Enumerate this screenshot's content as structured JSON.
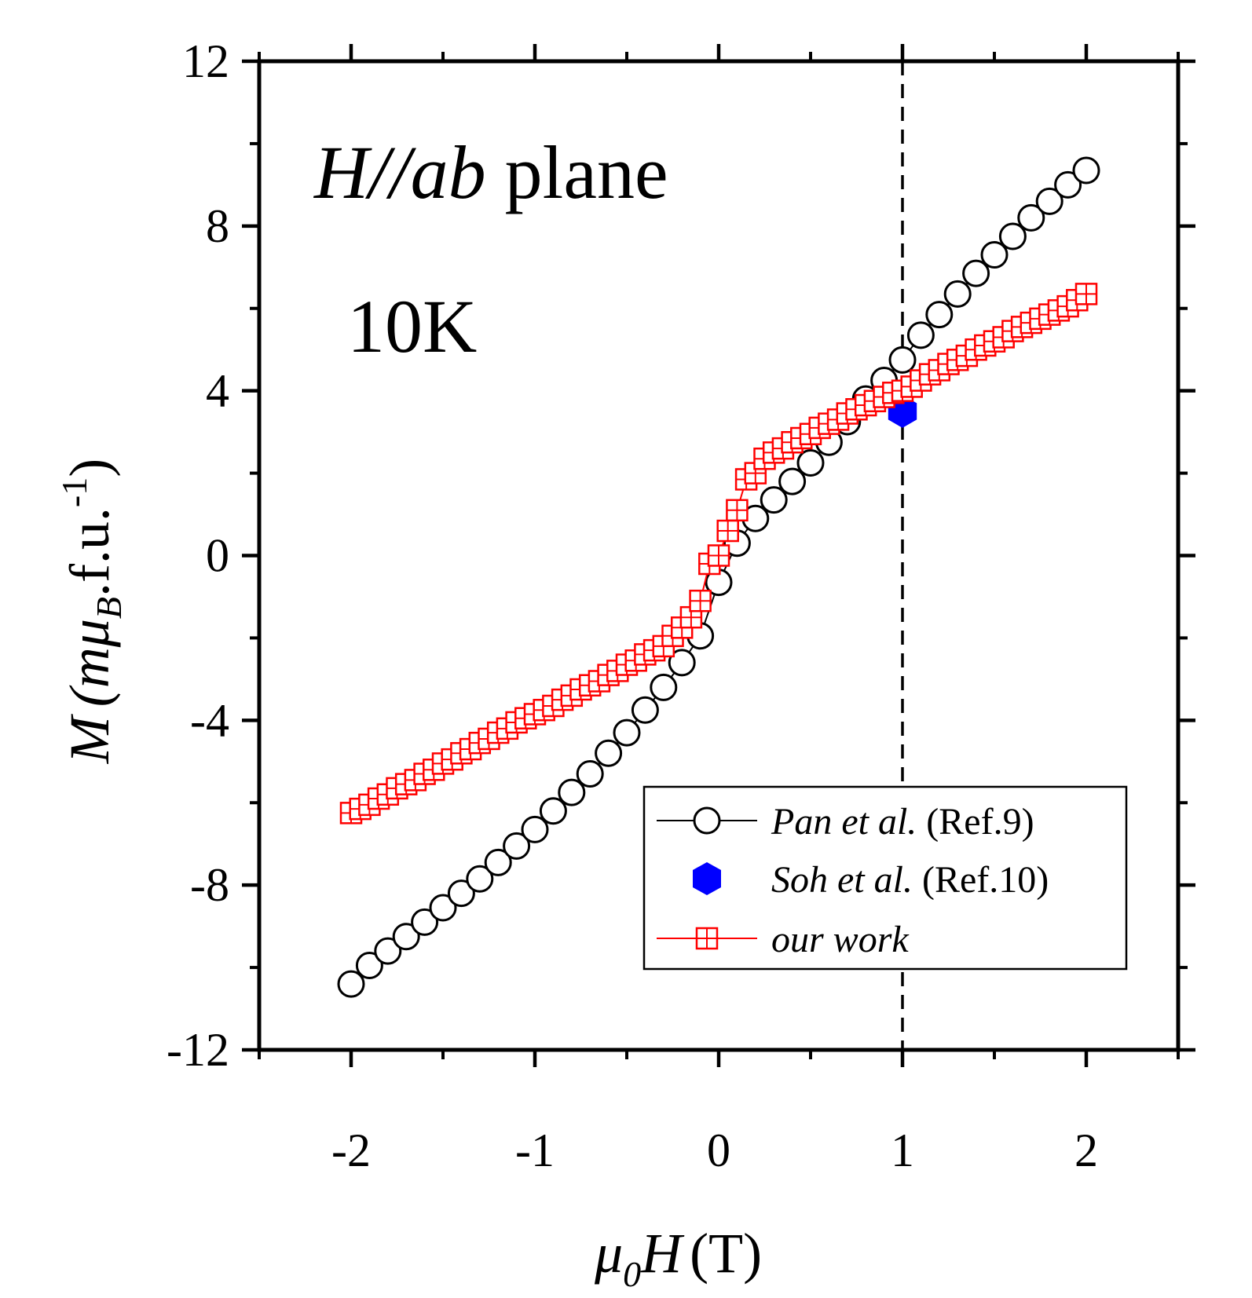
{
  "chart_data": {
    "type": "scatter",
    "title": "",
    "annotations": {
      "field_direction_italic": "H//ab",
      "field_direction_rest": "plane",
      "temperature": "10K"
    },
    "xlabel": {
      "symbol": "μ",
      "subscript": "0",
      "variable": "H",
      "unit": "(T)"
    },
    "ylabel": {
      "variable": "M",
      "open": "(m",
      "mu": "μ",
      "sub": "B",
      "mid": ".f.u.",
      "sup": "-1",
      "close": ")"
    },
    "xlim": [
      -2.5,
      2.5
    ],
    "ylim": [
      -12,
      12
    ],
    "xticks": [
      -2,
      -1,
      0,
      1,
      2
    ],
    "xtick_labels": [
      "-2",
      "-1",
      "0",
      "1",
      "2"
    ],
    "yticks": [
      -12,
      -8,
      -4,
      0,
      4,
      8,
      12
    ],
    "ytick_labels": [
      "-12",
      "-8",
      "-4",
      "0",
      "4",
      "8",
      "12"
    ],
    "reference_line": {
      "x": 1,
      "style": "dashed",
      "color": "#000000"
    },
    "legend_position": "bottom-right",
    "series": [
      {
        "name": "Pan et al.",
        "name_ref": "(Ref.9)",
        "color": "#000000",
        "marker": "open-circle",
        "line": true,
        "x": [
          -2.0,
          -1.9,
          -1.8,
          -1.7,
          -1.6,
          -1.5,
          -1.4,
          -1.3,
          -1.2,
          -1.1,
          -1.0,
          -0.9,
          -0.8,
          -0.7,
          -0.6,
          -0.5,
          -0.4,
          -0.3,
          -0.2,
          -0.1,
          0.0,
          0.1,
          0.2,
          0.3,
          0.4,
          0.5,
          0.6,
          0.7,
          0.8,
          0.9,
          1.0,
          1.1,
          1.2,
          1.3,
          1.4,
          1.5,
          1.6,
          1.7,
          1.8,
          1.9,
          2.0
        ],
        "y": [
          -10.4,
          -9.95,
          -9.6,
          -9.25,
          -8.9,
          -8.55,
          -8.2,
          -7.85,
          -7.45,
          -7.05,
          -6.65,
          -6.2,
          -5.75,
          -5.3,
          -4.8,
          -4.3,
          -3.75,
          -3.2,
          -2.6,
          -1.95,
          -0.65,
          0.3,
          0.9,
          1.35,
          1.8,
          2.25,
          2.75,
          3.25,
          3.8,
          4.25,
          4.75,
          5.35,
          5.85,
          6.35,
          6.85,
          7.3,
          7.75,
          8.2,
          8.6,
          9.0,
          9.35
        ]
      },
      {
        "name": "Soh et al.",
        "name_ref": "(Ref.10)",
        "color": "#0000ff",
        "marker": "filled-hexagon",
        "line": false,
        "x": [
          1.0
        ],
        "y": [
          3.5
        ]
      },
      {
        "name": "our work",
        "name_ref": "",
        "color": "#ff0000",
        "marker": "crossed-square",
        "line": true,
        "x": [
          -2.0,
          -1.95,
          -1.9,
          -1.85,
          -1.8,
          -1.75,
          -1.7,
          -1.65,
          -1.6,
          -1.55,
          -1.5,
          -1.45,
          -1.4,
          -1.35,
          -1.3,
          -1.25,
          -1.2,
          -1.15,
          -1.1,
          -1.05,
          -1.0,
          -0.95,
          -0.9,
          -0.85,
          -0.8,
          -0.75,
          -0.7,
          -0.65,
          -0.6,
          -0.55,
          -0.5,
          -0.45,
          -0.4,
          -0.35,
          -0.3,
          -0.25,
          -0.2,
          -0.15,
          -0.1,
          -0.05,
          0.0,
          0.05,
          0.1,
          0.15,
          0.2,
          0.25,
          0.3,
          0.35,
          0.4,
          0.45,
          0.5,
          0.55,
          0.6,
          0.65,
          0.7,
          0.75,
          0.8,
          0.85,
          0.9,
          0.95,
          1.0,
          1.05,
          1.1,
          1.15,
          1.2,
          1.25,
          1.3,
          1.35,
          1.4,
          1.45,
          1.5,
          1.55,
          1.6,
          1.65,
          1.7,
          1.75,
          1.8,
          1.85,
          1.9,
          1.95,
          2.0
        ],
        "y": [
          -6.25,
          -6.15,
          -6.05,
          -5.9,
          -5.8,
          -5.65,
          -5.55,
          -5.45,
          -5.3,
          -5.2,
          -5.05,
          -4.95,
          -4.8,
          -4.7,
          -4.55,
          -4.45,
          -4.3,
          -4.2,
          -4.05,
          -3.95,
          -3.85,
          -3.75,
          -3.65,
          -3.5,
          -3.4,
          -3.25,
          -3.15,
          -3.05,
          -2.9,
          -2.8,
          -2.65,
          -2.55,
          -2.4,
          -2.3,
          -2.2,
          -1.95,
          -1.75,
          -1.5,
          -1.1,
          -0.2,
          0.0,
          0.6,
          1.1,
          1.85,
          2.0,
          2.35,
          2.5,
          2.6,
          2.75,
          2.85,
          2.95,
          3.1,
          3.2,
          3.3,
          3.45,
          3.55,
          3.65,
          3.75,
          3.85,
          3.95,
          4.0,
          4.1,
          4.25,
          4.4,
          4.5,
          4.65,
          4.75,
          4.85,
          5.0,
          5.1,
          5.2,
          5.3,
          5.45,
          5.55,
          5.65,
          5.75,
          5.85,
          5.95,
          6.05,
          6.2,
          6.35
        ]
      }
    ]
  }
}
